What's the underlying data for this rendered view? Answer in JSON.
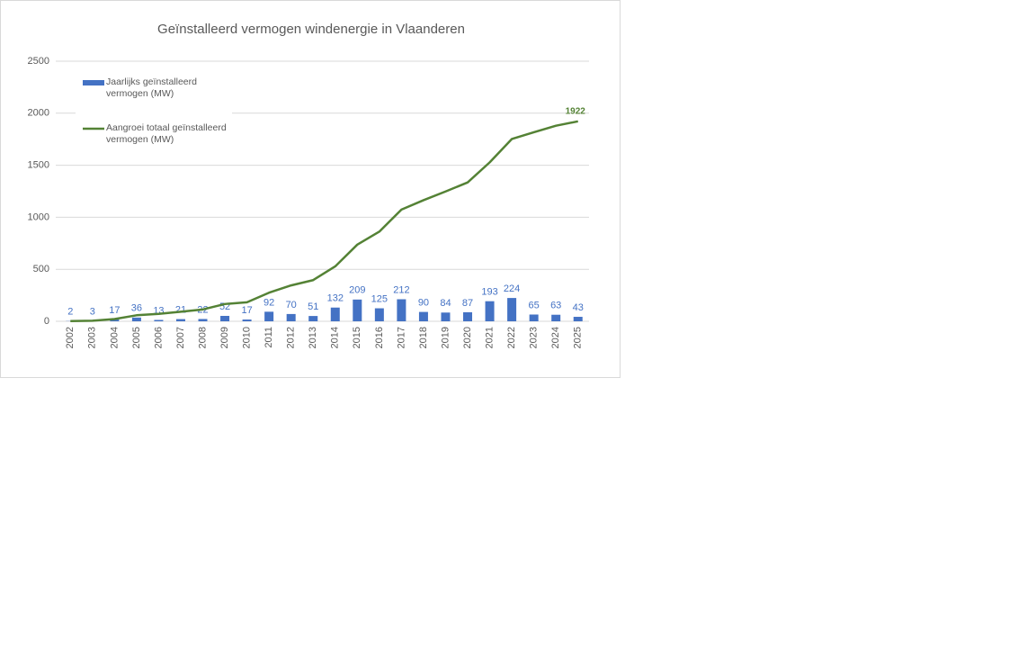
{
  "chart_data": {
    "type": "combo",
    "title": "Geïnstalleerd vermogen windenergie in Vlaanderen",
    "categories": [
      "2002",
      "2003",
      "2004",
      "2005",
      "2006",
      "2007",
      "2008",
      "2009",
      "2010",
      "2011",
      "2012",
      "2013",
      "2014",
      "2015",
      "2016",
      "2017",
      "2018",
      "2019",
      "2020",
      "2021",
      "2022",
      "2023",
      "2024",
      "2025"
    ],
    "series": [
      {
        "name": "Jaarlijks geïnstalleerd vermogen (MW)",
        "type": "bar",
        "color": "#4472c4",
        "values": [
          2,
          3,
          17,
          36,
          13,
          21,
          22,
          52,
          17,
          92,
          70,
          51,
          132,
          209,
          125,
          212,
          90,
          84,
          87,
          193,
          224,
          65,
          63,
          43
        ]
      },
      {
        "name": "Aangroei totaal geïnstalleerd vermogen (MW)",
        "type": "line",
        "color": "#548235",
        "values": [
          2,
          5,
          22,
          58,
          71,
          92,
          114,
          166,
          183,
          275,
          345,
          396,
          528,
          737,
          862,
          1074,
          1164,
          1248,
          1335,
          1528,
          1752,
          1817,
          1880,
          1922
        ]
      }
    ],
    "ylim": [
      0,
      2500
    ],
    "yticks": [
      0,
      500,
      1000,
      1500,
      2000,
      2500
    ],
    "grid": true,
    "legend": "top-left"
  }
}
